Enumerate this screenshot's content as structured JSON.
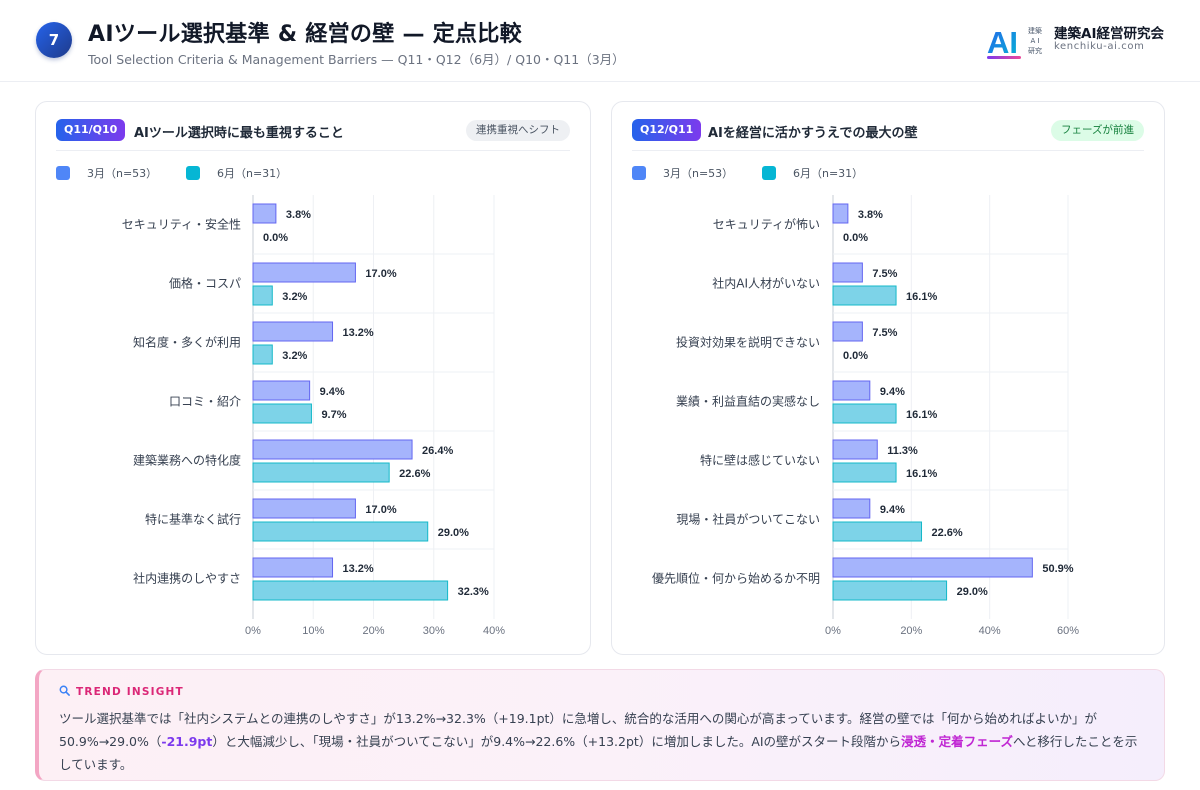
{
  "header": {
    "slide_number": "7",
    "title": "AIツール選択基準 & 経営の壁 — 定点比較",
    "subtitle": "Tool Selection Criteria & Management Barriers — Q11・Q12（6月）/ Q10・Q11（3月）",
    "brand_logo_text": "AI",
    "brand_small_text": "建築\nA I\n研究",
    "brand_name": "建築AI経営研究会",
    "brand_url": "kenchiku-ai.com"
  },
  "colors": {
    "march_fill": "#a5b4fc",
    "march_stroke": "#6366f1",
    "june_fill": "#7dd3e8",
    "june_stroke": "#14b8c8",
    "march_legend": "#4f86f7",
    "june_legend": "#06b6d4"
  },
  "panels": [
    {
      "badge": "Q11/Q10",
      "title": "AIツール選択時に最も重視すること",
      "tag": "連携重視へシフト",
      "legend": [
        {
          "label": "3月（n=53）"
        },
        {
          "label": "6月（n=31）"
        }
      ]
    },
    {
      "badge": "Q12/Q11",
      "title": "AIを経営に活かすうえでの最大の壁",
      "tag": "フェーズが前進",
      "legend": [
        {
          "label": "3月（n=53）"
        },
        {
          "label": "6月（n=31）"
        }
      ]
    }
  ],
  "chart_data": [
    {
      "type": "bar",
      "orientation": "horizontal",
      "title": "AIツール選択時に最も重視すること",
      "categories": [
        "セキュリティ・安全性",
        "価格・コスパ",
        "知名度・多くが利用",
        "口コミ・紹介",
        "建築業務への特化度",
        "特に基準なく試行",
        "社内連携のしやすさ"
      ],
      "series": [
        {
          "name": "3月（n=53）",
          "values": [
            3.8,
            17.0,
            13.2,
            9.4,
            26.4,
            17.0,
            13.2
          ]
        },
        {
          "name": "6月（n=31）",
          "values": [
            0.0,
            3.2,
            3.2,
            9.7,
            22.6,
            29.0,
            32.3
          ]
        }
      ],
      "xlim": [
        0,
        40
      ],
      "xticks": [
        "0%",
        "10%",
        "20%",
        "30%",
        "40%"
      ],
      "tick_step": 10,
      "grid": true,
      "legend": "top-left"
    },
    {
      "type": "bar",
      "orientation": "horizontal",
      "title": "AIを経営に活かすうえでの最大の壁",
      "categories": [
        "セキュリティが怖い",
        "社内AI人材がいない",
        "投資対効果を説明できない",
        "業績・利益直結の実感なし",
        "特に壁は感じていない",
        "現場・社員がついてこない",
        "優先順位・何から始めるか不明"
      ],
      "series": [
        {
          "name": "3月（n=53）",
          "values": [
            3.8,
            7.5,
            7.5,
            9.4,
            11.3,
            9.4,
            50.9
          ]
        },
        {
          "name": "6月（n=31）",
          "values": [
            0.0,
            16.1,
            0.0,
            16.1,
            16.1,
            22.6,
            29.0
          ]
        }
      ],
      "xlim": [
        0,
        60
      ],
      "xticks": [
        "0%",
        "20%",
        "40%",
        "60%"
      ],
      "tick_step": 20,
      "grid": true,
      "legend": "top-left"
    }
  ],
  "insight": {
    "heading": "TREND INSIGHT",
    "segments": [
      {
        "text": "ツール選択基準では「社内システムとの連携のしやすさ」が13.2%→32.3%（+19.1pt）に急増し、統合的な活用への関心が高まっています。経営の壁では「何から始めればよいか」が50.9%→29.0%（",
        "style": ""
      },
      {
        "text": "-21.9pt",
        "style": "hl-purple"
      },
      {
        "text": "）と大幅減少し、「現場・社員がついてこない」が9.4%→22.6%（+13.2pt）に増加しました。AIの壁がスタート段階から",
        "style": ""
      },
      {
        "text": "浸透・定着フェーズ",
        "style": "hl-magenta"
      },
      {
        "text": "へと移行したことを示しています。",
        "style": ""
      }
    ]
  }
}
